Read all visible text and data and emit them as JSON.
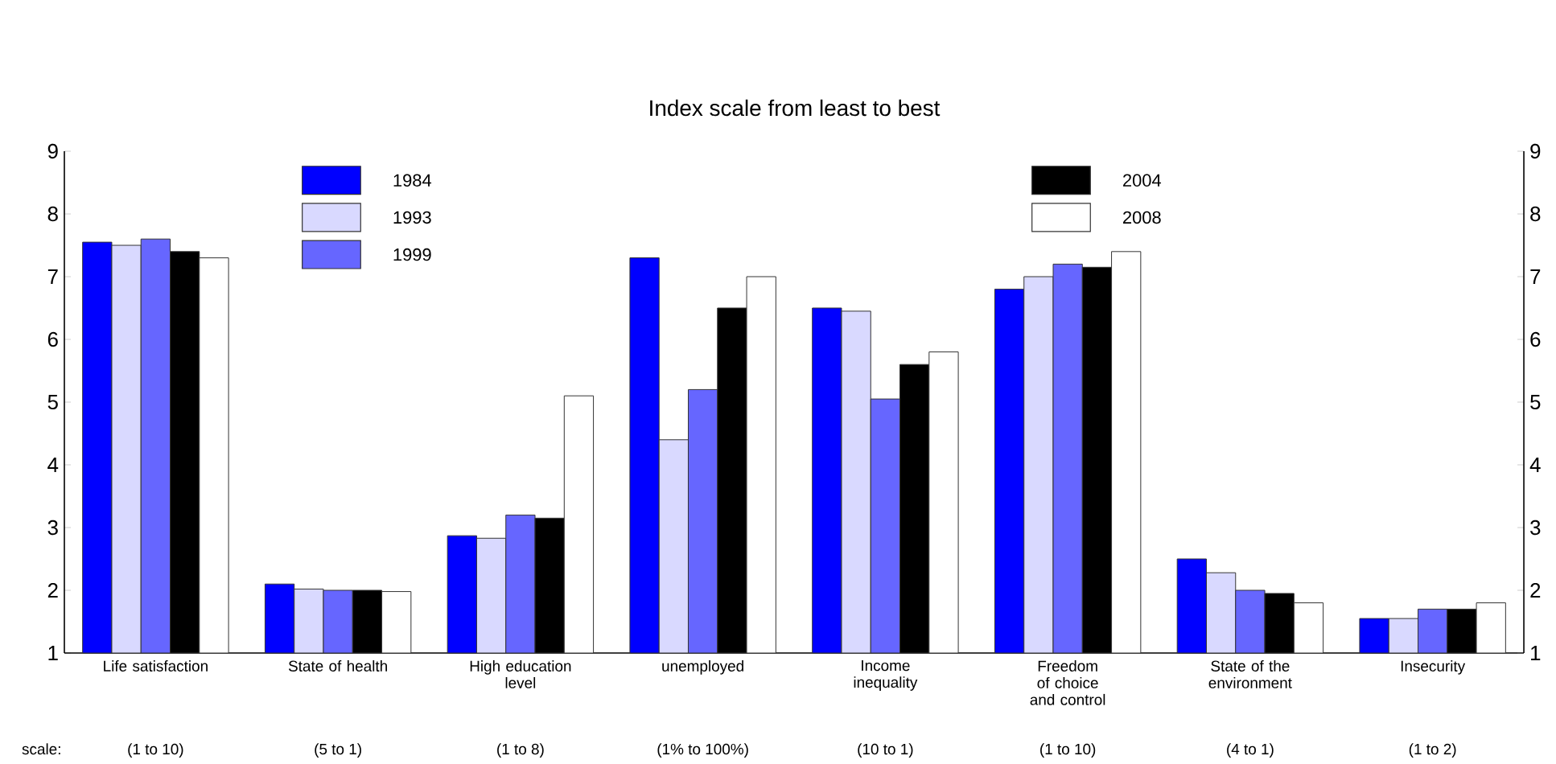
{
  "chart_data": {
    "type": "bar",
    "title": "Index scale from least to best",
    "categories": [
      "Life satisfaction",
      "State of health",
      "High education level",
      "unemployed",
      "Income inequality",
      "Freedom of choice and control",
      "State of the environment",
      "Insecurity"
    ],
    "series": [
      {
        "name": "1984",
        "color": "#0000ff",
        "values": [
          7.55,
          2.1,
          2.87,
          7.3,
          6.5,
          6.8,
          2.5,
          1.55
        ]
      },
      {
        "name": "1993",
        "color": "#d9d9ff",
        "values": [
          7.5,
          2.02,
          2.83,
          4.4,
          6.45,
          7.0,
          2.28,
          1.55
        ]
      },
      {
        "name": "1999",
        "color": "#6666ff",
        "values": [
          7.6,
          2.0,
          3.2,
          5.2,
          5.05,
          7.2,
          2.0,
          1.7
        ]
      },
      {
        "name": "2004",
        "color": "#000000",
        "values": [
          7.4,
          2.0,
          3.15,
          6.5,
          5.6,
          7.15,
          1.95,
          1.7
        ]
      },
      {
        "name": "2008",
        "color": "#ffffff",
        "values": [
          7.3,
          1.98,
          5.1,
          7.0,
          5.8,
          7.4,
          1.8,
          1.8
        ]
      }
    ],
    "ylim": [
      1,
      9
    ],
    "yticks": [
      1,
      2,
      3,
      4,
      5,
      6,
      7,
      8,
      9
    ],
    "y2lim": [
      1,
      9
    ],
    "y2ticks": [
      1,
      2,
      3,
      4,
      5,
      6,
      7,
      8,
      9
    ],
    "legend": "top",
    "annotations": [
      "scale:",
      "(1 to 10)",
      "(5 to 1)",
      "(1 to 8)",
      "(1% to 100%)",
      "(10 to 1)",
      "(1 to 10)",
      "(4 to 1)",
      "(1 to 2)"
    ]
  }
}
